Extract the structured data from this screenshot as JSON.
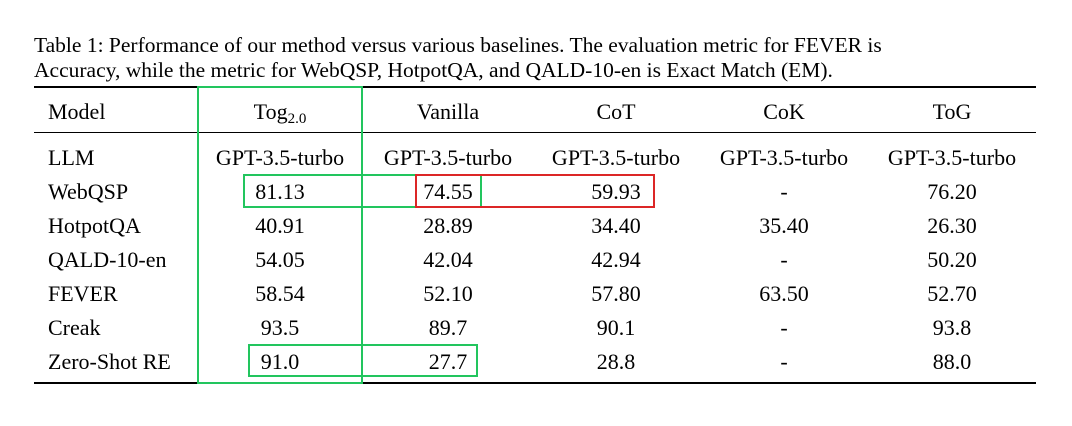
{
  "caption": {
    "line1": "Table 1: Performance of our method versus various baselines. The evaluation metric for FEVER is",
    "line2": "Accuracy, while the metric for WebQSP, HotpotQA, and QALD-10-en is Exact Match (EM)."
  },
  "table": {
    "header": {
      "model": "Model",
      "tog20_main": "Tog",
      "tog20_sub": "2.0",
      "vanilla": "Vanilla",
      "cot": "CoT",
      "cok": "CoK",
      "tog": "ToG"
    },
    "rows": [
      {
        "name": "LLM",
        "values": [
          "GPT-3.5-turbo",
          "GPT-3.5-turbo",
          "GPT-3.5-turbo",
          "GPT-3.5-turbo",
          "GPT-3.5-turbo"
        ]
      },
      {
        "name": "WebQSP",
        "values": [
          "81.13",
          "74.55",
          "59.93",
          "-",
          "76.20"
        ]
      },
      {
        "name": "HotpotQA",
        "values": [
          "40.91",
          "28.89",
          "34.40",
          "35.40",
          "26.30"
        ]
      },
      {
        "name": "QALD-10-en",
        "values": [
          "54.05",
          "42.04",
          "42.94",
          "-",
          "50.20"
        ]
      },
      {
        "name": "FEVER",
        "values": [
          "58.54",
          "52.10",
          "57.80",
          "63.50",
          "52.70"
        ]
      },
      {
        "name": "Creak",
        "values": [
          "93.5",
          "89.7",
          "90.1",
          "-",
          "93.8"
        ]
      },
      {
        "name": "Zero-Shot RE",
        "values": [
          "91.0",
          "27.7",
          "28.8",
          "-",
          "88.0"
        ]
      }
    ]
  },
  "highlight_colors": {
    "green": "#22c55e",
    "red": "#dc2626"
  }
}
